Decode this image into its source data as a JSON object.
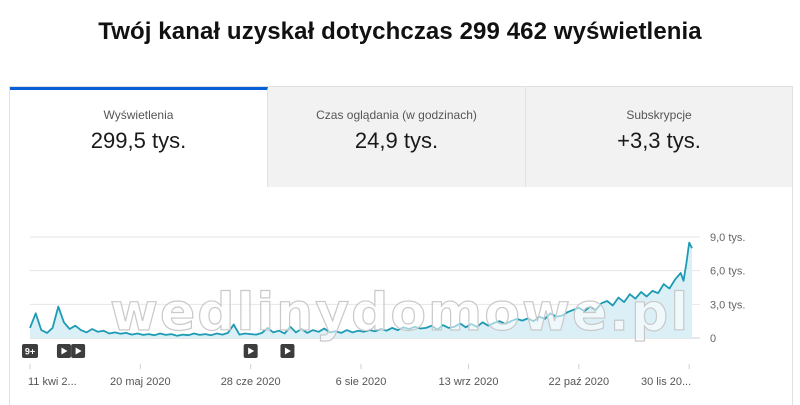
{
  "headline": "Twój kanał uzyskał dotychczas 299 462 wyświetlenia",
  "tabs": [
    {
      "label": "Wyświetlenia",
      "value": "299,5 tys.",
      "active": true
    },
    {
      "label": "Czas oglądania (w godzinach)",
      "value": "24,9 tys.",
      "active": false
    },
    {
      "label": "Subskrypcje",
      "value": "+3,3 tys.",
      "active": false
    }
  ],
  "watermark": "wedlinydomowe.pl",
  "markers": {
    "badge_label": "9+",
    "video_icon": "play-icon"
  },
  "colors": {
    "accent": "#065fd4",
    "line": "#1e9bb4",
    "area": "#dbf0f6",
    "marker": "#3d3d3d"
  },
  "chart_data": {
    "type": "area",
    "title": "",
    "xlabel": "",
    "ylabel": "",
    "ylim": [
      0,
      9000
    ],
    "y_tick_labels": [
      "9,0 tys.",
      "6,0 tys.",
      "3,0 tys.",
      "0"
    ],
    "y_ticks": [
      9000,
      6000,
      3000,
      0
    ],
    "x_tick_labels": [
      "11 kwi 2...",
      "20 maj 2020",
      "28 cze 2020",
      "6 sie 2020",
      "13 wrz 2020",
      "22 paź 2020",
      "30 lis 20..."
    ],
    "x_tick_days": [
      0,
      39,
      78,
      117,
      155,
      194,
      233
    ],
    "x_range_days": [
      0,
      234
    ],
    "grid": true,
    "series": [
      {
        "points": [
          [
            0,
            900
          ],
          [
            2,
            2200
          ],
          [
            4,
            700
          ],
          [
            6,
            450
          ],
          [
            8,
            900
          ],
          [
            10,
            2800
          ],
          [
            12,
            1400
          ],
          [
            14,
            800
          ],
          [
            16,
            1100
          ],
          [
            18,
            700
          ],
          [
            20,
            500
          ],
          [
            22,
            800
          ],
          [
            24,
            550
          ],
          [
            26,
            650
          ],
          [
            28,
            400
          ],
          [
            30,
            500
          ],
          [
            32,
            380
          ],
          [
            34,
            450
          ],
          [
            36,
            300
          ],
          [
            38,
            400
          ],
          [
            40,
            280
          ],
          [
            42,
            350
          ],
          [
            44,
            250
          ],
          [
            46,
            400
          ],
          [
            48,
            280
          ],
          [
            50,
            350
          ],
          [
            52,
            200
          ],
          [
            54,
            300
          ],
          [
            56,
            250
          ],
          [
            58,
            400
          ],
          [
            60,
            280
          ],
          [
            62,
            350
          ],
          [
            64,
            250
          ],
          [
            66,
            400
          ],
          [
            68,
            300
          ],
          [
            70,
            450
          ],
          [
            72,
            1200
          ],
          [
            74,
            300
          ],
          [
            76,
            400
          ],
          [
            78,
            350
          ],
          [
            80,
            300
          ],
          [
            82,
            450
          ],
          [
            84,
            900
          ],
          [
            86,
            500
          ],
          [
            88,
            650
          ],
          [
            90,
            400
          ],
          [
            92,
            1000
          ],
          [
            94,
            500
          ],
          [
            96,
            800
          ],
          [
            98,
            450
          ],
          [
            100,
            700
          ],
          [
            102,
            550
          ],
          [
            104,
            850
          ],
          [
            106,
            500
          ],
          [
            108,
            600
          ],
          [
            110,
            450
          ],
          [
            112,
            700
          ],
          [
            114,
            500
          ],
          [
            116,
            650
          ],
          [
            118,
            550
          ],
          [
            120,
            700
          ],
          [
            122,
            600
          ],
          [
            124,
            800
          ],
          [
            126,
            650
          ],
          [
            128,
            900
          ],
          [
            130,
            700
          ],
          [
            132,
            950
          ],
          [
            134,
            800
          ],
          [
            136,
            1000
          ],
          [
            138,
            850
          ],
          [
            140,
            900
          ],
          [
            142,
            1100
          ],
          [
            144,
            750
          ],
          [
            146,
            1150
          ],
          [
            148,
            900
          ],
          [
            150,
            1000
          ],
          [
            152,
            1300
          ],
          [
            154,
            950
          ],
          [
            156,
            1250
          ],
          [
            158,
            1000
          ],
          [
            160,
            1400
          ],
          [
            162,
            1100
          ],
          [
            164,
            1350
          ],
          [
            166,
            1500
          ],
          [
            168,
            1250
          ],
          [
            170,
            1500
          ],
          [
            172,
            1700
          ],
          [
            174,
            1550
          ],
          [
            176,
            1750
          ],
          [
            178,
            1500
          ],
          [
            180,
            1900
          ],
          [
            182,
            1700
          ],
          [
            184,
            2200
          ],
          [
            186,
            1900
          ],
          [
            188,
            2000
          ],
          [
            190,
            2300
          ],
          [
            192,
            2500
          ],
          [
            194,
            2700
          ],
          [
            196,
            2400
          ],
          [
            198,
            2800
          ],
          [
            200,
            2500
          ],
          [
            202,
            3100
          ],
          [
            204,
            3300
          ],
          [
            206,
            2900
          ],
          [
            208,
            3600
          ],
          [
            210,
            3200
          ],
          [
            212,
            3900
          ],
          [
            214,
            3500
          ],
          [
            216,
            4100
          ],
          [
            218,
            3700
          ],
          [
            220,
            4200
          ],
          [
            222,
            4000
          ],
          [
            224,
            4800
          ],
          [
            226,
            4400
          ],
          [
            228,
            5200
          ],
          [
            230,
            5800
          ],
          [
            231,
            5100
          ],
          [
            232,
            6600
          ],
          [
            233,
            8500
          ],
          [
            234,
            8000
          ]
        ]
      }
    ],
    "markers": [
      {
        "day": 0,
        "kind": "badge"
      },
      {
        "day": 12,
        "kind": "video"
      },
      {
        "day": 17,
        "kind": "video"
      },
      {
        "day": 78,
        "kind": "video"
      },
      {
        "day": 91,
        "kind": "video"
      }
    ]
  }
}
